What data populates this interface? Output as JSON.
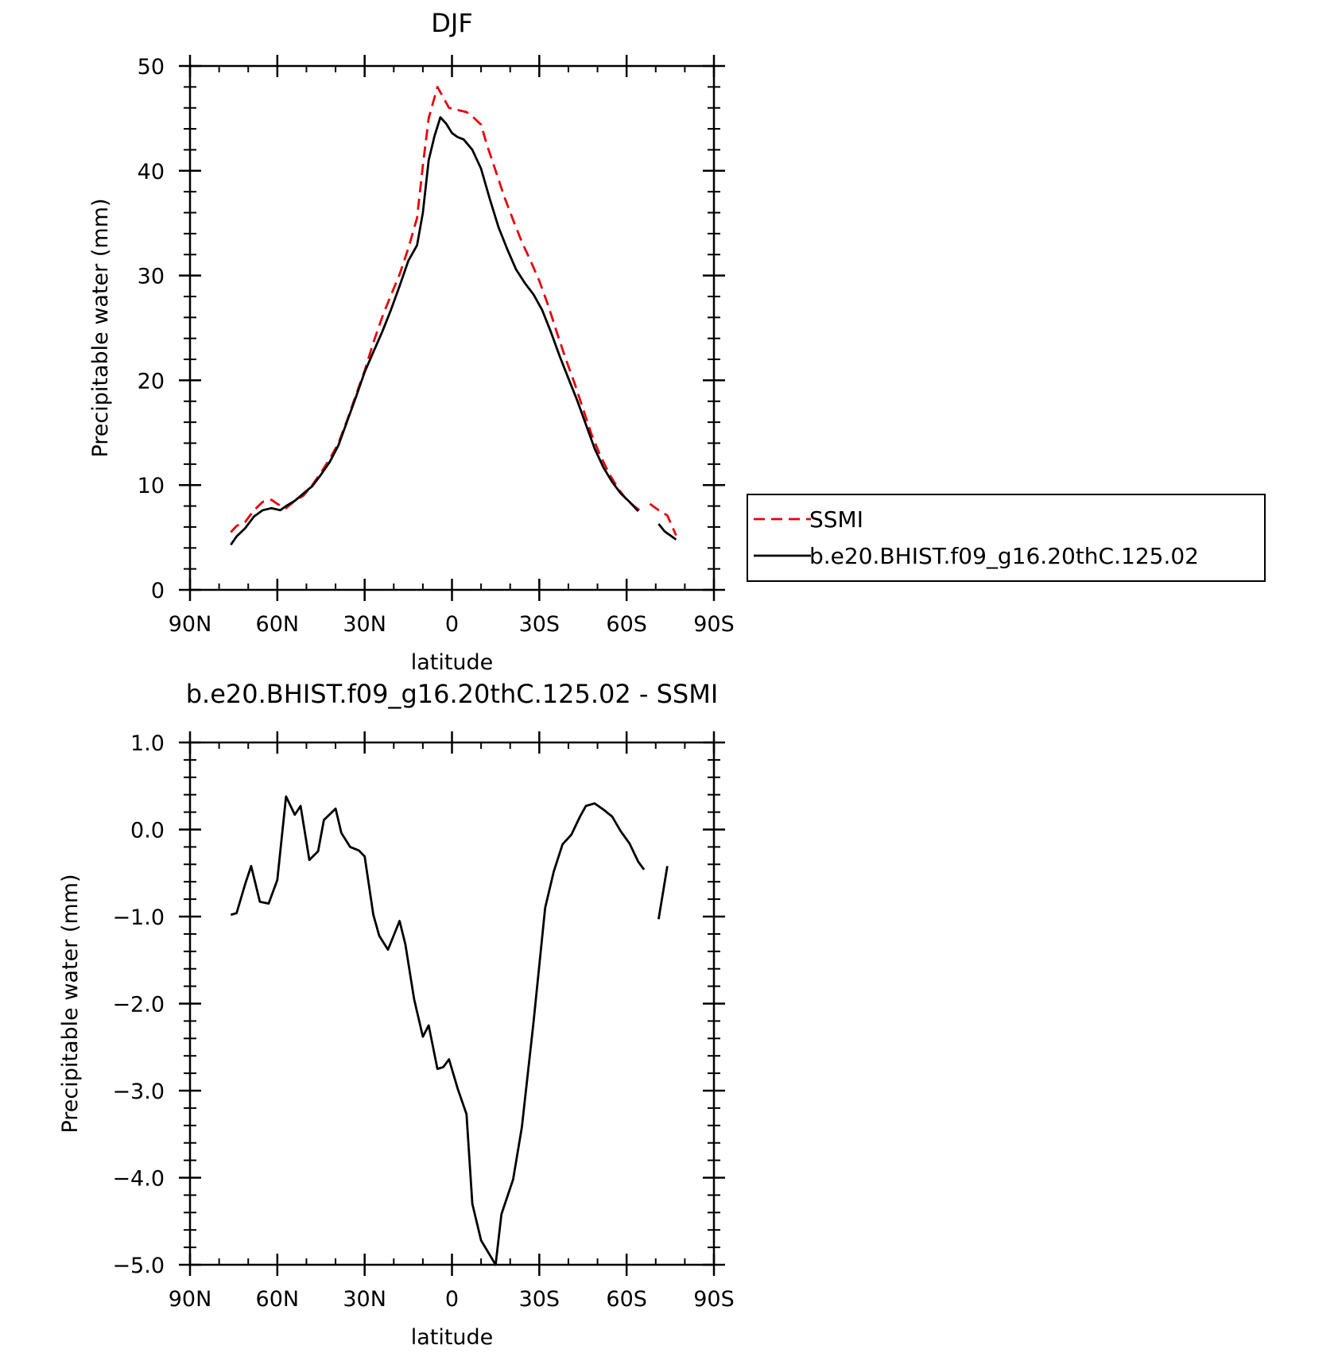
{
  "chart_data": [
    {
      "type": "line",
      "title": "DJF",
      "xlabel": "latitude",
      "ylabel": "Precipitable water (mm)",
      "xlim": [
        90,
        -90
      ],
      "ylim": [
        0,
        50
      ],
      "x_ticks": [
        {
          "value": 90,
          "label": "90N"
        },
        {
          "value": 60,
          "label": "60N"
        },
        {
          "value": 30,
          "label": "30N"
        },
        {
          "value": 0,
          "label": "0"
        },
        {
          "value": -30,
          "label": "30S"
        },
        {
          "value": -60,
          "label": "60S"
        },
        {
          "value": -90,
          "label": "90S"
        }
      ],
      "y_ticks": [
        {
          "value": 0,
          "label": "0"
        },
        {
          "value": 10,
          "label": "10"
        },
        {
          "value": 20,
          "label": "20"
        },
        {
          "value": 30,
          "label": "30"
        },
        {
          "value": 40,
          "label": "40"
        },
        {
          "value": 50,
          "label": "50"
        }
      ],
      "grid": false,
      "legend": "right",
      "series": [
        {
          "name": "SSMI",
          "color": "#e8000b",
          "dash": "dashed",
          "segments": [
            [
              [
                76,
                5.5
              ],
              [
                74,
                6.1
              ],
              [
                71,
                6.5
              ],
              [
                68,
                7.6
              ],
              [
                65,
                8.4
              ],
              [
                62,
                8.6
              ],
              [
                60,
                8.2
              ],
              [
                57,
                7.8
              ],
              [
                54,
                8.5
              ],
              [
                51,
                9.0
              ],
              [
                48,
                10.0
              ],
              [
                45,
                11.2
              ],
              [
                42,
                12.5
              ],
              [
                39,
                14.0
              ],
              [
                36,
                16.2
              ],
              [
                33,
                18.6
              ],
              [
                30,
                20.9
              ],
              [
                27,
                23.6
              ],
              [
                24,
                26.0
              ],
              [
                21,
                28.1
              ],
              [
                18,
                30.1
              ],
              [
                15,
                32.6
              ],
              [
                12,
                35.5
              ],
              [
                10,
                40.5
              ],
              [
                8,
                45.0
              ],
              [
                5,
                48.0
              ],
              [
                3,
                47.0
              ],
              [
                1,
                46.0
              ],
              [
                -2,
                45.8
              ],
              [
                -5,
                45.6
              ],
              [
                -7,
                45.2
              ],
              [
                -10,
                44.4
              ],
              [
                -12,
                42.5
              ],
              [
                -15,
                40.0
              ],
              [
                -18,
                37.5
              ],
              [
                -21,
                35.3
              ],
              [
                -24,
                33.2
              ],
              [
                -27,
                31.4
              ],
              [
                -30,
                29.5
              ],
              [
                -33,
                27.2
              ],
              [
                -36,
                24.6
              ],
              [
                -39,
                22.1
              ],
              [
                -42,
                19.8
              ],
              [
                -45,
                17.3
              ],
              [
                -48,
                14.8
              ],
              [
                -51,
                12.8
              ],
              [
                -54,
                11.1
              ],
              [
                -57,
                9.7
              ],
              [
                -60,
                8.6
              ],
              [
                -63,
                7.9
              ],
              [
                -66,
                7.3
              ]
            ],
            [
              [
                -68,
                8.2
              ],
              [
                -71,
                7.6
              ],
              [
                -74,
                7.1
              ],
              [
                -77,
                5.2
              ]
            ]
          ]
        },
        {
          "name": "b.e20.BHIST.f09_g16.20thC.125.02",
          "color": "#000000",
          "dash": "solid",
          "segments": [
            [
              [
                76,
                4.3
              ],
              [
                74,
                5.1
              ],
              [
                71,
                5.9
              ],
              [
                68,
                7.0
              ],
              [
                65,
                7.6
              ],
              [
                62,
                7.8
              ],
              [
                59,
                7.6
              ],
              [
                57,
                8.0
              ],
              [
                54,
                8.5
              ],
              [
                51,
                9.2
              ],
              [
                48,
                9.9
              ],
              [
                45,
                11.0
              ],
              [
                42,
                12.2
              ],
              [
                39,
                13.8
              ],
              [
                36,
                16.1
              ],
              [
                33,
                18.4
              ],
              [
                30,
                20.8
              ],
              [
                27,
                22.7
              ],
              [
                24,
                24.6
              ],
              [
                21,
                26.7
              ],
              [
                18,
                29.0
              ],
              [
                15,
                31.4
              ],
              [
                12,
                32.9
              ],
              [
                10,
                36.0
              ],
              [
                8,
                41.0
              ],
              [
                6,
                43.3
              ],
              [
                4,
                45.1
              ],
              [
                2,
                44.5
              ],
              [
                0,
                43.6
              ],
              [
                -2,
                43.2
              ],
              [
                -4,
                43.0
              ],
              [
                -7,
                42.0
              ],
              [
                -10,
                40.2
              ],
              [
                -13,
                37.3
              ],
              [
                -16,
                34.6
              ],
              [
                -19,
                32.5
              ],
              [
                -22,
                30.6
              ],
              [
                -25,
                29.3
              ],
              [
                -28,
                28.2
              ],
              [
                -31,
                26.7
              ],
              [
                -34,
                24.6
              ],
              [
                -37,
                22.3
              ],
              [
                -40,
                20.2
              ],
              [
                -43,
                18.1
              ],
              [
                -46,
                15.8
              ],
              [
                -49,
                13.5
              ],
              [
                -52,
                11.7
              ],
              [
                -55,
                10.3
              ],
              [
                -58,
                9.2
              ],
              [
                -61,
                8.4
              ],
              [
                -64,
                7.5
              ]
            ],
            [
              [
                -71,
                6.3
              ],
              [
                -73,
                5.6
              ],
              [
                -77,
                4.8
              ]
            ]
          ]
        }
      ]
    },
    {
      "type": "line",
      "title": "b.e20.BHIST.f09_g16.20thC.125.02 - SSMI",
      "xlabel": "latitude",
      "ylabel": "Precipitable water (mm)",
      "xlim": [
        90,
        -90
      ],
      "ylim": [
        -5.0,
        1.0
      ],
      "x_ticks": [
        {
          "value": 90,
          "label": "90N"
        },
        {
          "value": 60,
          "label": "60N"
        },
        {
          "value": 30,
          "label": "30N"
        },
        {
          "value": 0,
          "label": "0"
        },
        {
          "value": -30,
          "label": "30S"
        },
        {
          "value": -60,
          "label": "60S"
        },
        {
          "value": -90,
          "label": "90S"
        }
      ],
      "y_ticks": [
        {
          "value": 1.0,
          "label": "1.0"
        },
        {
          "value": 0.0,
          "label": "0.0"
        },
        {
          "value": -1.0,
          "label": "−1.0"
        },
        {
          "value": -2.0,
          "label": "−2.0"
        },
        {
          "value": -3.0,
          "label": "−3.0"
        },
        {
          "value": -4.0,
          "label": "−4.0"
        },
        {
          "value": -5.0,
          "label": "−5.0"
        }
      ],
      "grid": false,
      "series": [
        {
          "color": "#000000",
          "dash": "solid",
          "segments": [
            [
              [
                76,
                -0.98
              ],
              [
                74,
                -0.96
              ],
              [
                71,
                -0.62
              ],
              [
                69,
                -0.42
              ],
              [
                66,
                -0.83
              ],
              [
                63,
                -0.85
              ],
              [
                60,
                -0.58
              ],
              [
                57,
                0.38
              ],
              [
                54,
                0.17
              ],
              [
                52,
                0.27
              ],
              [
                49,
                -0.35
              ],
              [
                46,
                -0.25
              ],
              [
                44,
                0.11
              ],
              [
                40,
                0.24
              ],
              [
                38,
                -0.04
              ],
              [
                35,
                -0.2
              ],
              [
                32,
                -0.24
              ],
              [
                30,
                -0.31
              ],
              [
                27,
                -0.98
              ],
              [
                25,
                -1.22
              ],
              [
                22,
                -1.38
              ],
              [
                18,
                -1.05
              ],
              [
                16,
                -1.32
              ],
              [
                13,
                -1.95
              ],
              [
                10,
                -2.38
              ],
              [
                8,
                -2.25
              ],
              [
                5,
                -2.75
              ],
              [
                3,
                -2.73
              ],
              [
                1,
                -2.64
              ],
              [
                -2,
                -2.98
              ],
              [
                -5,
                -3.27
              ],
              [
                -7,
                -4.3
              ],
              [
                -10,
                -4.72
              ],
              [
                -15,
                -5.0
              ],
              [
                -17,
                -4.42
              ],
              [
                -21,
                -4.02
              ],
              [
                -24,
                -3.42
              ],
              [
                -28,
                -2.22
              ],
              [
                -32,
                -0.9
              ],
              [
                -35,
                -0.48
              ],
              [
                -38,
                -0.17
              ],
              [
                -41,
                -0.06
              ],
              [
                -44,
                0.15
              ],
              [
                -46,
                0.27
              ],
              [
                -49,
                0.3
              ],
              [
                -52,
                0.23
              ],
              [
                -55,
                0.15
              ],
              [
                -58,
                -0.02
              ],
              [
                -61,
                -0.16
              ],
              [
                -64,
                -0.37
              ],
              [
                -66,
                -0.46
              ]
            ],
            [
              [
                -71,
                -1.03
              ],
              [
                -74,
                -0.42
              ]
            ]
          ]
        }
      ]
    }
  ]
}
